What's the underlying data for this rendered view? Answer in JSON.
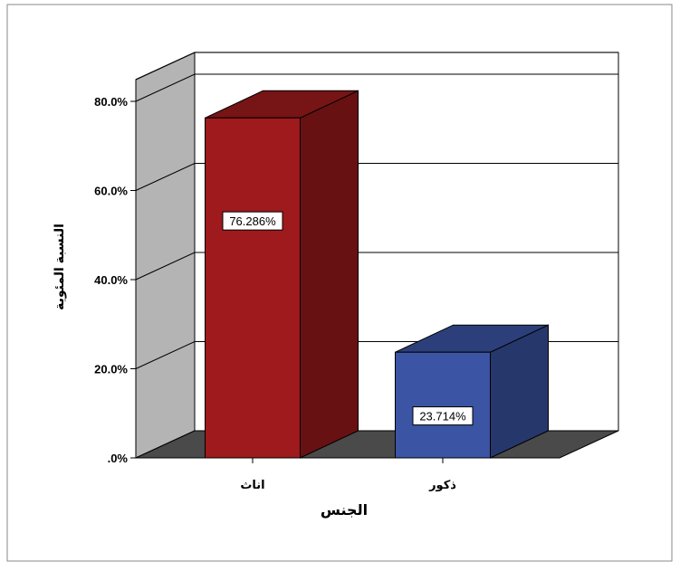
{
  "chart_data": {
    "type": "bar",
    "title": "",
    "xlabel": "الجنس",
    "ylabel": "النسبة المئوية",
    "categories": [
      "اناث",
      "ذكور"
    ],
    "values": [
      76.286,
      23.714
    ],
    "value_labels": [
      "76.286%",
      "23.714%"
    ],
    "yticks": [
      0,
      20,
      40,
      60,
      80
    ],
    "ytick_labels": [
      ".0%",
      "20.0%",
      "40.0%",
      "60.0%",
      "80.0%"
    ],
    "ylim": [
      0,
      80
    ],
    "grid": true,
    "bar_colors": [
      "#9e1a1c",
      "#3b54a4"
    ],
    "legend": "none"
  }
}
